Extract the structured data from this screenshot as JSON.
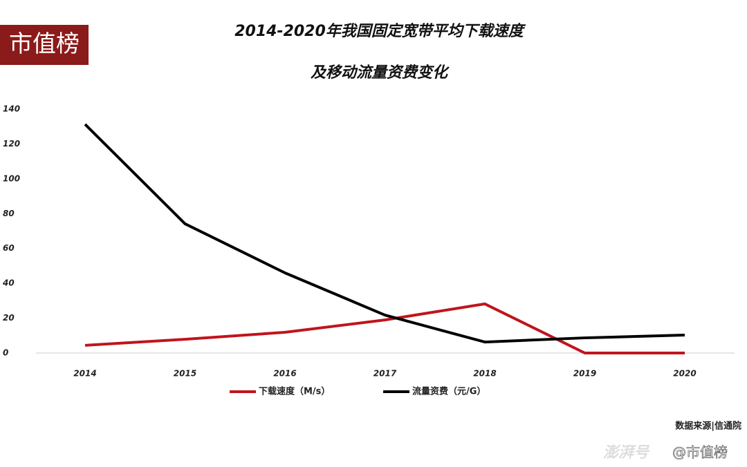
{
  "logo": "市值榜",
  "watermark": {
    "platform": "澎湃号",
    "account": "@市值榜"
  },
  "chart_data": {
    "type": "line",
    "title_lines": [
      "2014-2020年我国固定宽带平均下载速度",
      "及移动流量资费变化"
    ],
    "source": "数据来源|信通院",
    "categories": [
      "2014",
      "2015",
      "2016",
      "2017",
      "2018",
      "2019",
      "2020"
    ],
    "series": [
      {
        "name": "下载速度（M/s）",
        "color": "#c0141c",
        "values": [
          4.4,
          7.9,
          11.9,
          19,
          28.2,
          0,
          0
        ]
      },
      {
        "name": "流量资费（元/G）",
        "color": "#000000",
        "values": [
          131.3,
          74.2,
          46,
          21.8,
          6.3,
          8.7,
          10.3
        ]
      }
    ],
    "ylim": [
      0,
      140
    ],
    "yticks": [
      0,
      20,
      40,
      60,
      80,
      100,
      120,
      140
    ],
    "grid": false
  }
}
